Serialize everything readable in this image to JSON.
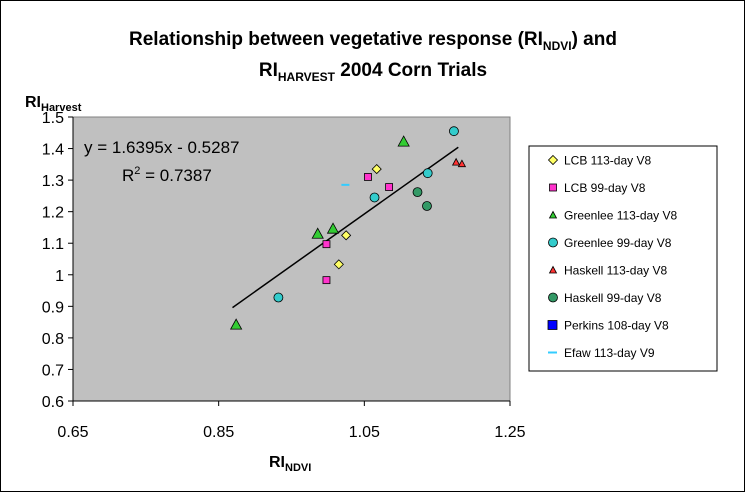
{
  "chart_data": {
    "type": "scatter",
    "title_line1_pre": "Relationship between vegetative response (RI",
    "title_line1_sub": "NDVI",
    "title_line1_post": ") and",
    "title_line2_pre": "RI",
    "title_line2_sub": "HARVEST",
    "title_line2_post": " 2004 Corn Trials",
    "xlabel_main": "RI",
    "xlabel_sub": "NDVI",
    "ylabel_main": "RI",
    "ylabel_sub": "Harvest",
    "xlim": [
      0.65,
      1.25
    ],
    "ylim": [
      0.6,
      1.5
    ],
    "x_ticks": [
      0.65,
      0.85,
      1.05,
      1.25
    ],
    "x_tick_labels": [
      "0.65",
      "0.85",
      "1.05",
      "1.25"
    ],
    "y_ticks": [
      0.6,
      0.7,
      0.8,
      0.9,
      1.0,
      1.1,
      1.2,
      1.3,
      1.4,
      1.5
    ],
    "y_tick_labels": [
      "0.6",
      "0.7",
      "0.8",
      "0.9",
      "1",
      "1.1",
      "1.2",
      "1.3",
      "1.4",
      "1.5"
    ],
    "trendline": {
      "slope": 1.6395,
      "intercept": -0.5287,
      "x_range": [
        0.869,
        1.179
      ],
      "equation": "y = 1.6395x - 0.5287",
      "r2_label": "R",
      "r2_sup": "2",
      "r2_value": " = 0.7387"
    },
    "legend_position": "right",
    "series": [
      {
        "name": "LCB 113-day V8",
        "marker": "diamond",
        "color": "#FFFF66",
        "points": [
          [
            1.025,
            1.125
          ],
          [
            1.067,
            1.335
          ],
          [
            1.015,
            1.033
          ]
        ]
      },
      {
        "name": "LCB 99-day V8",
        "marker": "square",
        "color": "#FF33CC",
        "points": [
          [
            0.998,
            1.097
          ],
          [
            0.998,
            0.983
          ],
          [
            1.055,
            1.31
          ],
          [
            1.084,
            1.278
          ]
        ]
      },
      {
        "name": "Greenlee 113-day V8",
        "marker": "triangle",
        "color": "#33CC33",
        "points": [
          [
            0.874,
            0.842
          ],
          [
            0.986,
            1.13
          ],
          [
            1.007,
            1.146
          ],
          [
            1.104,
            1.422
          ]
        ]
      },
      {
        "name": "Greenlee 99-day V8",
        "marker": "circle",
        "color": "#33CCCC",
        "points": [
          [
            0.932,
            0.928
          ],
          [
            1.064,
            1.245
          ],
          [
            1.137,
            1.322
          ],
          [
            1.173,
            1.455
          ]
        ]
      },
      {
        "name": "Haskell 113-day V8",
        "marker": "triangle-small",
        "color": "#FF3333",
        "points": [
          [
            1.176,
            1.357
          ],
          [
            1.184,
            1.352
          ]
        ]
      },
      {
        "name": "Haskell 99-day V8",
        "marker": "circle",
        "color": "#339966",
        "points": [
          [
            1.123,
            1.262
          ],
          [
            1.136,
            1.218
          ]
        ]
      },
      {
        "name": "Perkins 108-day V8",
        "marker": "square",
        "color": "#0000FF",
        "points": []
      },
      {
        "name": "Efaw 113-day V9",
        "marker": "dash",
        "color": "#33CCFF",
        "points": [
          [
            1.024,
            1.285
          ]
        ]
      }
    ]
  }
}
